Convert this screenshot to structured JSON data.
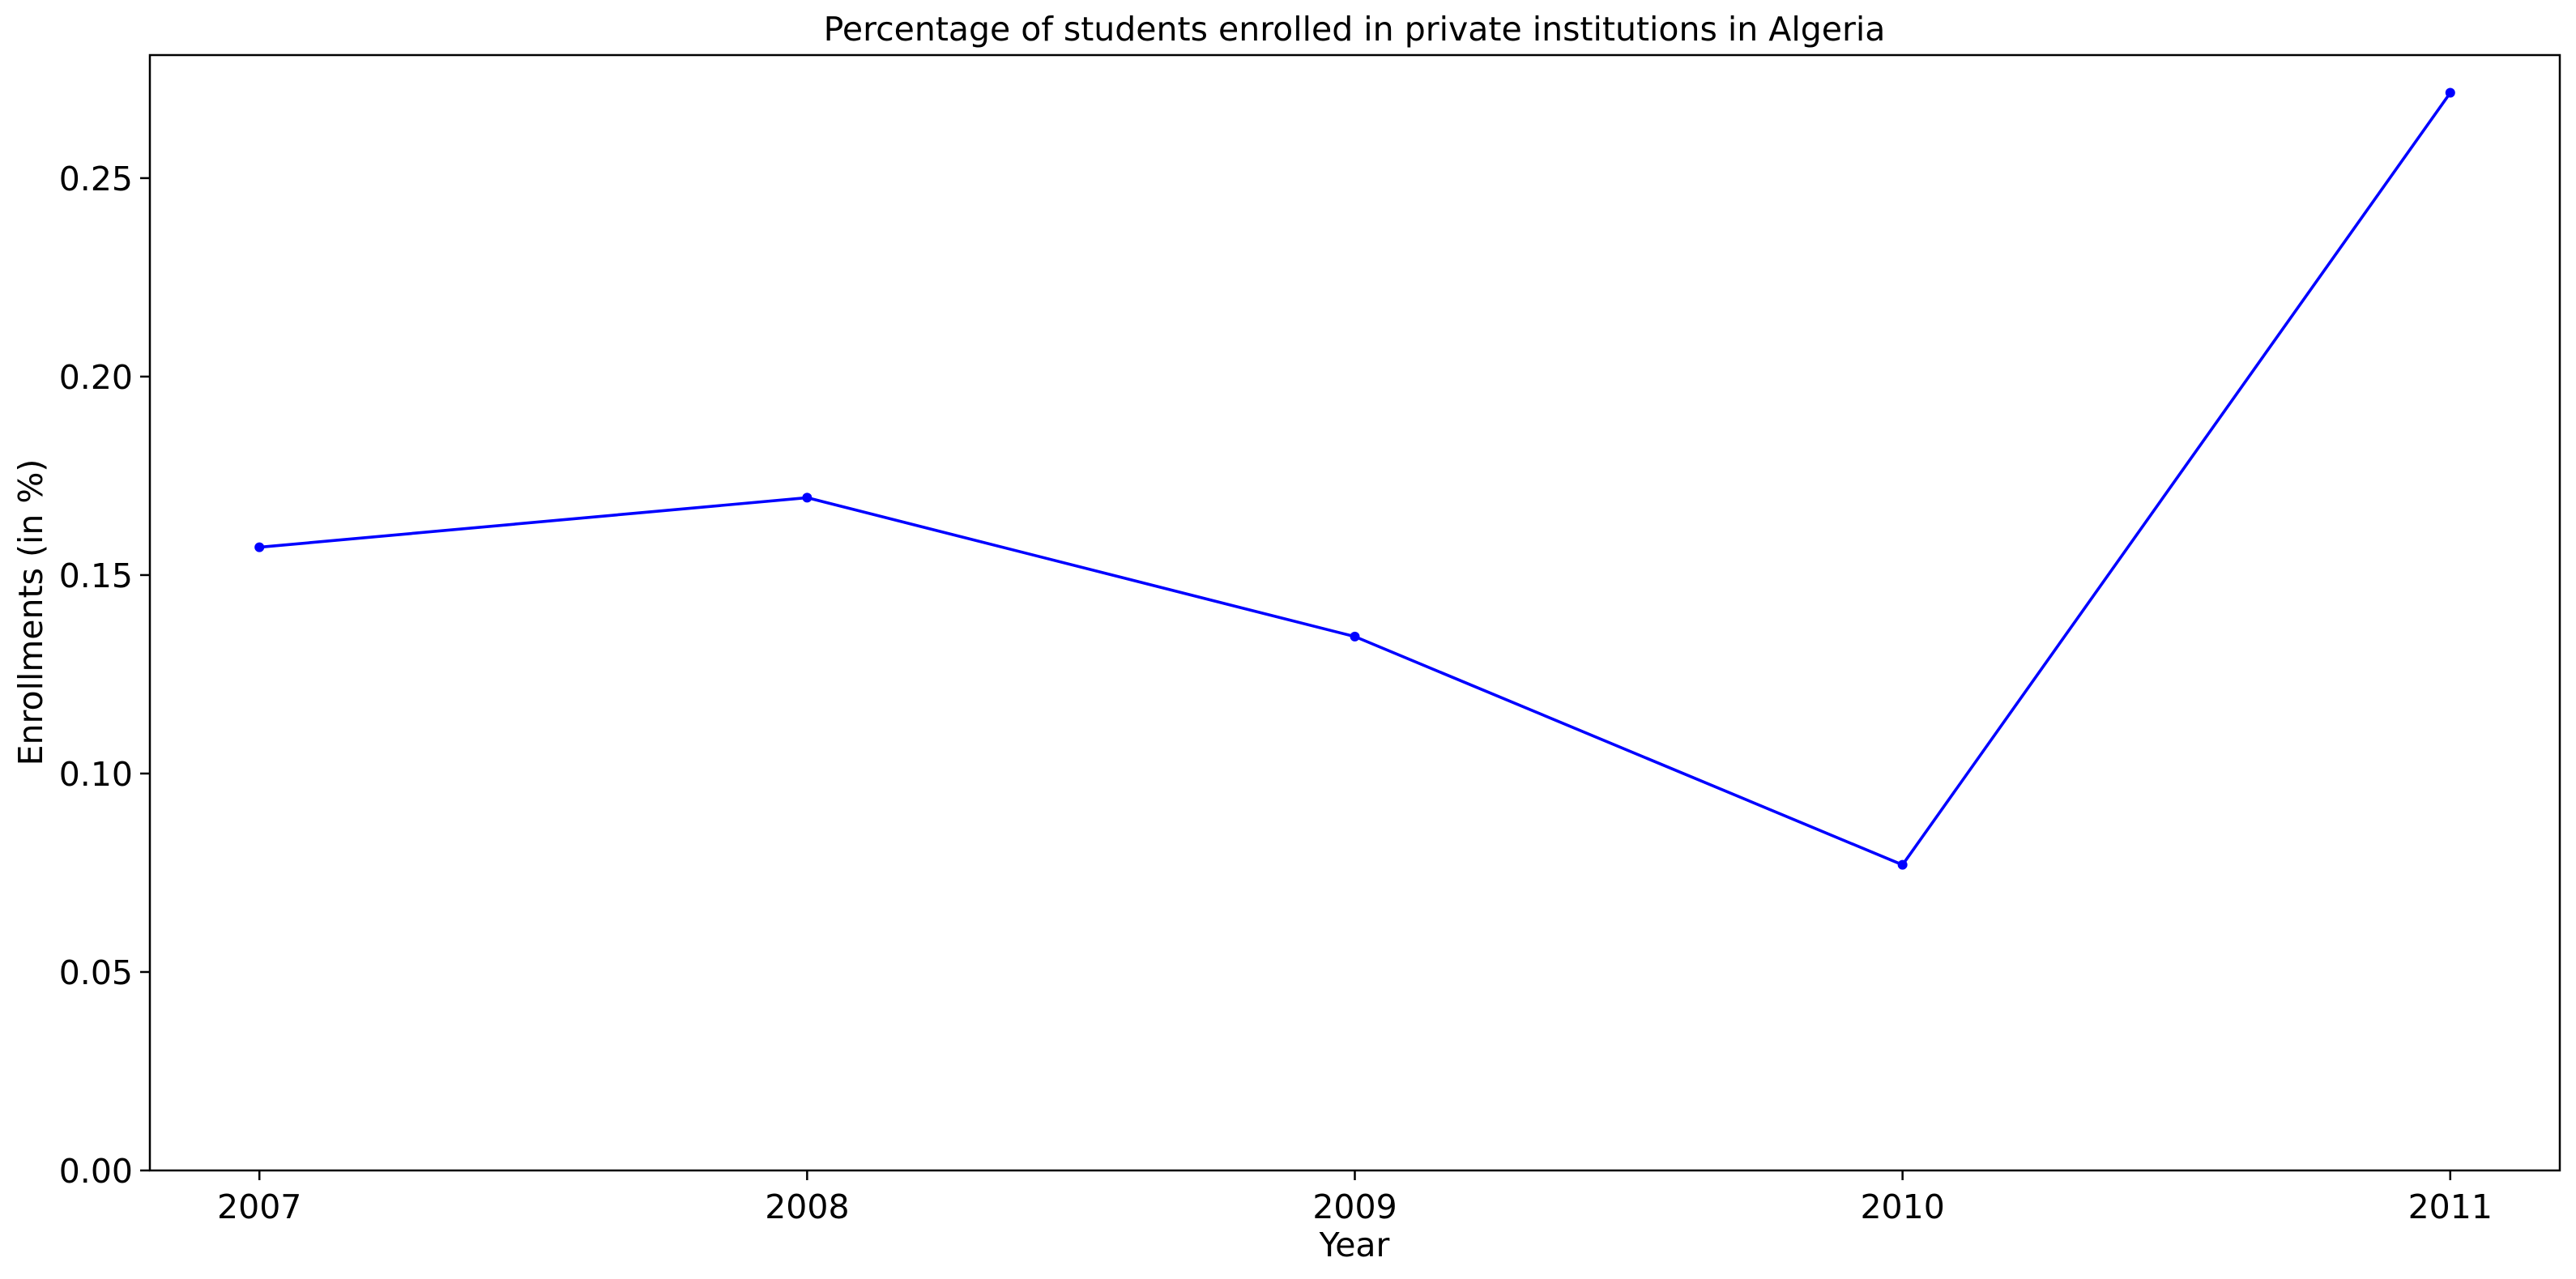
{
  "chart_data": {
    "type": "line",
    "title": "Percentage of students enrolled in private institutions in Algeria",
    "xlabel": "Year",
    "ylabel": "Enrollments (in %)",
    "x": [
      "2007",
      "2008",
      "2009",
      "2010",
      "2011"
    ],
    "series": [
      {
        "values": [
          0.157,
          0.1695,
          0.1345,
          0.077,
          0.2715
        ],
        "color": "#0000ff",
        "marker": "dot"
      }
    ],
    "yticks": [
      "0.00",
      "0.05",
      "0.10",
      "0.15",
      "0.20",
      "0.25"
    ],
    "ytick_values": [
      0,
      0.05,
      0.1,
      0.15,
      0.2,
      0.25
    ],
    "ylim": [
      0,
      0.281
    ],
    "xlim": [
      -0.2,
      4.2
    ],
    "grid": false,
    "legend": "none"
  }
}
